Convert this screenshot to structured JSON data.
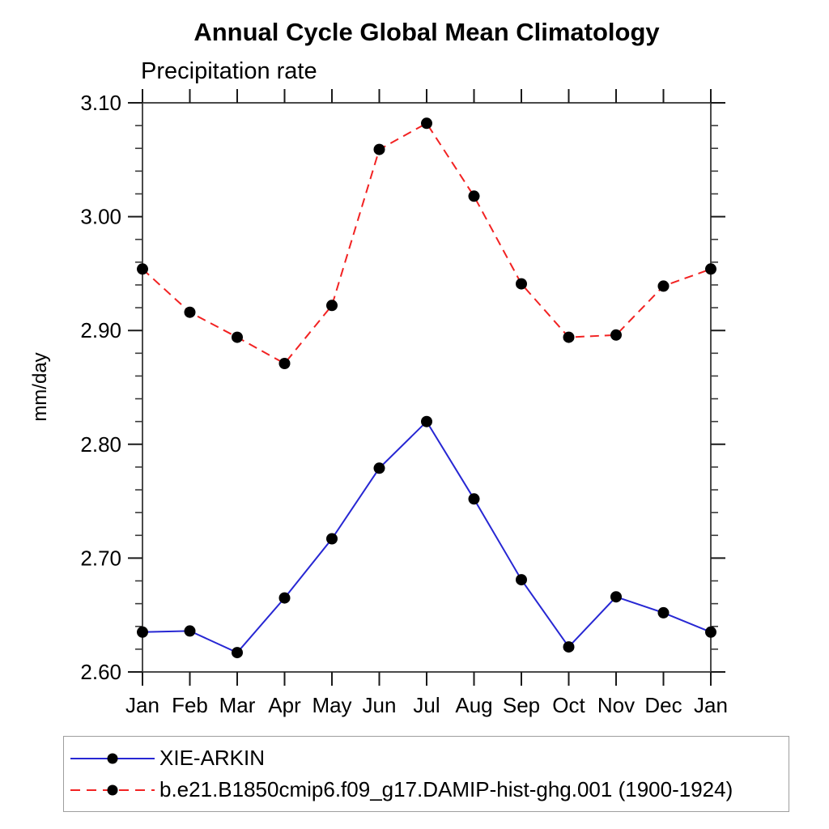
{
  "chart_data": {
    "type": "line",
    "title": "Annual Cycle Global Mean Climatology",
    "subtitle": "Precipitation rate",
    "ylabel": "mm/day",
    "xlabel": "",
    "categories": [
      "Jan",
      "Feb",
      "Mar",
      "Apr",
      "May",
      "Jun",
      "Jul",
      "Aug",
      "Sep",
      "Oct",
      "Nov",
      "Dec",
      "Jan"
    ],
    "ylim": [
      2.6,
      3.1
    ],
    "y_tick_labels": [
      "2.60",
      "2.70",
      "2.80",
      "2.90",
      "3.00",
      "3.10"
    ],
    "y_major_step": 0.1,
    "y_minor_step": 0.02,
    "grid": false,
    "legend_position": "bottom-left-box",
    "marker": "filled-circle",
    "marker_color": "#000000",
    "frame_color": "#4a4a4a",
    "series": [
      {
        "name": "XIE-ARKIN",
        "color": "#2727d3",
        "style": "solid",
        "values": [
          2.635,
          2.636,
          2.617,
          2.665,
          2.717,
          2.779,
          2.82,
          2.752,
          2.681,
          2.622,
          2.666,
          2.652,
          2.635
        ]
      },
      {
        "name": "b.e21.B1850cmip6.f09_g17.DAMIP-hist-ghg.001 (1900-1924)",
        "color": "#f22222",
        "style": "dashed",
        "values": [
          2.954,
          2.916,
          2.894,
          2.871,
          2.922,
          3.059,
          3.082,
          3.018,
          2.941,
          2.894,
          2.896,
          2.939,
          2.954
        ]
      }
    ]
  }
}
